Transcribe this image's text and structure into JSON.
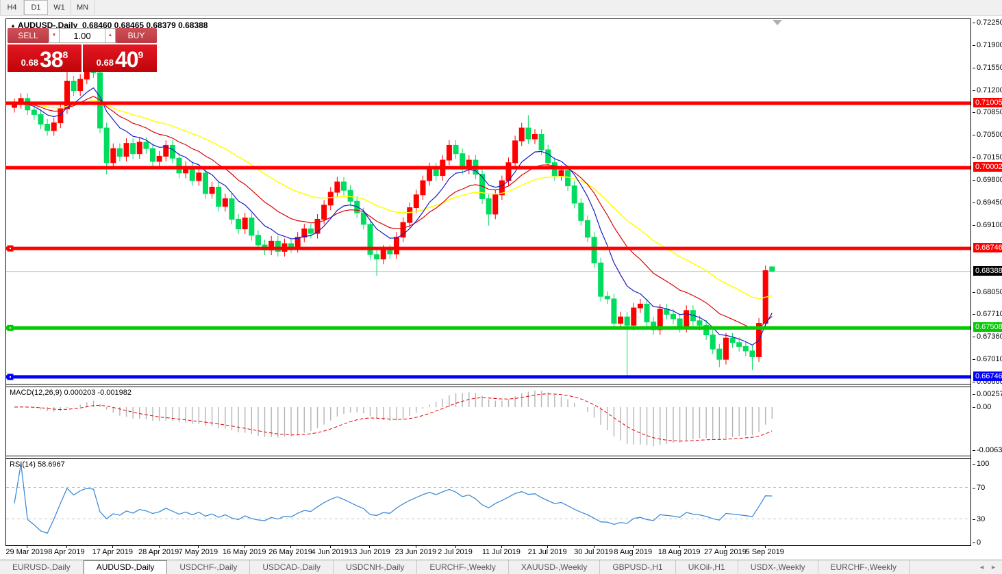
{
  "toolbar": {
    "timeframes": [
      "H4",
      "D1",
      "W1",
      "MN"
    ],
    "active": "D1"
  },
  "header": {
    "symbol": "AUDUSD-,Daily",
    "ohlc_text": "0.68460 0.68465 0.68379 0.68388"
  },
  "trade_panel": {
    "sell_label": "SELL",
    "buy_label": "BUY",
    "volume": "1.00",
    "sell_price": {
      "prefix": "0.68",
      "big": "38",
      "sup": "8"
    },
    "buy_price": {
      "prefix": "0.68",
      "big": "40",
      "sup": "9"
    },
    "spin_down": "▼",
    "spin_up": "▲"
  },
  "colors": {
    "up_candle": "#ff0000",
    "down_candle": "#00dc5e",
    "ma_fast": "#1a1ac8",
    "ma_mid": "#dc0000",
    "ma_slow": "#ffff00",
    "hline_red": "#ff0000",
    "hline_green": "#00cc00",
    "hline_blue": "#0000ff",
    "current_price_line": "#b8b8b8",
    "macd_hist": "#b4b4b4",
    "macd_signal": "#e00000",
    "rsi_line": "#3c8cd8"
  },
  "chart_data": {
    "type": "candlestick",
    "symbol": "AUDUSD",
    "timeframe": "Daily",
    "color_convention": "red = up candle, green = down candle (CN convention)",
    "closes": [
      0.71,
      0.7108,
      0.709,
      0.7083,
      0.7068,
      0.7058,
      0.707,
      0.7092,
      0.7135,
      0.712,
      0.7138,
      0.715,
      0.7148,
      0.7062,
      0.7008,
      0.703,
      0.7018,
      0.7038,
      0.7022,
      0.704,
      0.703,
      0.701,
      0.7018,
      0.7035,
      0.7015,
      0.6992,
      0.7002,
      0.698,
      0.6992,
      0.696,
      0.697,
      0.694,
      0.6952,
      0.692,
      0.6905,
      0.6922,
      0.6895,
      0.688,
      0.6872,
      0.6886,
      0.687,
      0.6882,
      0.6876,
      0.6892,
      0.6905,
      0.6898,
      0.692,
      0.6942,
      0.6962,
      0.6978,
      0.6965,
      0.6948,
      0.693,
      0.6912,
      0.6865,
      0.6858,
      0.6872,
      0.6866,
      0.6892,
      0.6915,
      0.6938,
      0.6958,
      0.698,
      0.7,
      0.6988,
      0.7012,
      0.7035,
      0.7022,
      0.6998,
      0.7012,
      0.699,
      0.6952,
      0.6928,
      0.6958,
      0.698,
      0.7008,
      0.7042,
      0.7062,
      0.7045,
      0.7052,
      0.7028,
      0.7008,
      0.6988,
      0.6996,
      0.6972,
      0.6945,
      0.6918,
      0.6892,
      0.6852,
      0.68,
      0.6796,
      0.6758,
      0.6768,
      0.6755,
      0.6782,
      0.6788,
      0.676,
      0.6748,
      0.678,
      0.6772,
      0.6765,
      0.6752,
      0.6778,
      0.6762,
      0.6755,
      0.674,
      0.6718,
      0.6702,
      0.6735,
      0.6728,
      0.6722,
      0.6715,
      0.6706,
      0.6758,
      0.684,
      0.68388
    ],
    "wick_overrides": {
      "8": {
        "h": 0.7178
      },
      "11": {
        "h": 0.7175
      },
      "14": {
        "l": 0.699
      },
      "55": {
        "l": 0.6832
      },
      "72": {
        "l": 0.691
      },
      "78": {
        "h": 0.7082
      },
      "93": {
        "l": 0.6677
      },
      "107": {
        "l": 0.669
      },
      "112": {
        "l": 0.6685
      },
      "114": {
        "h": 0.6848
      },
      "115": {
        "o": 0.6846,
        "h": 0.68465,
        "l": 0.68379
      }
    },
    "default_wick_pad": 0.0008,
    "ma_periods": {
      "blue": 8,
      "red": 17,
      "yellow": 34
    },
    "price_ticks": [
      "0.72250",
      "0.71900",
      "0.71550",
      "0.71200",
      "0.70850",
      "0.70500",
      "0.70150",
      "0.69800",
      "0.69450",
      "0.69100",
      "0.68050",
      "0.67710",
      "0.67360",
      "0.67010",
      "0.66660"
    ],
    "hlines": [
      {
        "price": 0.71005,
        "label": "0.71005",
        "color": "#ff0000",
        "handle": false
      },
      {
        "price": 0.70002,
        "label": "0.70002",
        "color": "#ff0000",
        "handle": false
      },
      {
        "price": 0.68746,
        "label": "0.68746",
        "color": "#ff0000",
        "handle": true
      },
      {
        "price": 0.67508,
        "label": "0.67508",
        "color": "#00cc00",
        "handle": true
      },
      {
        "price": 0.66746,
        "label": "0.66746",
        "color": "#0000ff",
        "handle": true
      }
    ],
    "current_price": {
      "value": 0.68388,
      "label": "0.68388"
    },
    "date_labels": [
      {
        "label": "29 Mar 2019",
        "i": 2
      },
      {
        "label": "8 Apr 2019",
        "i": 8
      },
      {
        "label": "17 Apr 2019",
        "i": 15
      },
      {
        "label": "28 Apr 2019",
        "i": 22
      },
      {
        "label": "7 May 2019",
        "i": 28
      },
      {
        "label": "16 May 2019",
        "i": 35
      },
      {
        "label": "26 May 2019",
        "i": 42
      },
      {
        "label": "4 Jun 2019",
        "i": 48
      },
      {
        "label": "13 Jun 2019",
        "i": 54
      },
      {
        "label": "23 Jun 2019",
        "i": 61
      },
      {
        "label": "2 Jul 2019",
        "i": 67
      },
      {
        "label": "11 Jul 2019",
        "i": 74
      },
      {
        "label": "21 Jul 2019",
        "i": 81
      },
      {
        "label": "30 Jul 2019",
        "i": 88
      },
      {
        "label": "8 Aug 2019",
        "i": 94
      },
      {
        "label": "18 Aug 2019",
        "i": 101
      },
      {
        "label": "27 Aug 2019",
        "i": 108
      },
      {
        "label": "5 Sep 2019",
        "i": 114
      }
    ],
    "macd": {
      "label": "MACD(12,26,9)",
      "values_text": "0.000203 -0.001982",
      "params": [
        12,
        26,
        9
      ],
      "axis_labels": [
        "0.002574",
        "0.00",
        "-0.006326"
      ],
      "axis_max": 0.002574,
      "axis_min": -0.006326
    },
    "rsi": {
      "label": "RSI(14)",
      "value_text": "58.6967",
      "period": 14,
      "axis_labels": [
        "100",
        "70",
        "30",
        "0"
      ],
      "levels": [
        100,
        70,
        30,
        0
      ],
      "dashed_levels": [
        70,
        30
      ]
    }
  },
  "tabs": {
    "items": [
      "EURUSD-,Daily",
      "AUDUSD-,Daily",
      "USDCHF-,Daily",
      "USDCAD-,Daily",
      "USDCNH-,Daily",
      "EURCHF-,Weekly",
      "XAUUSD-,Weekly",
      "GBPUSD-,H1",
      "UKOil-,H1",
      "USDX-,Weekly",
      "EURCHF-,Weekly"
    ],
    "active_index": 1,
    "arrow_left": "◄",
    "arrow_right": "►"
  }
}
